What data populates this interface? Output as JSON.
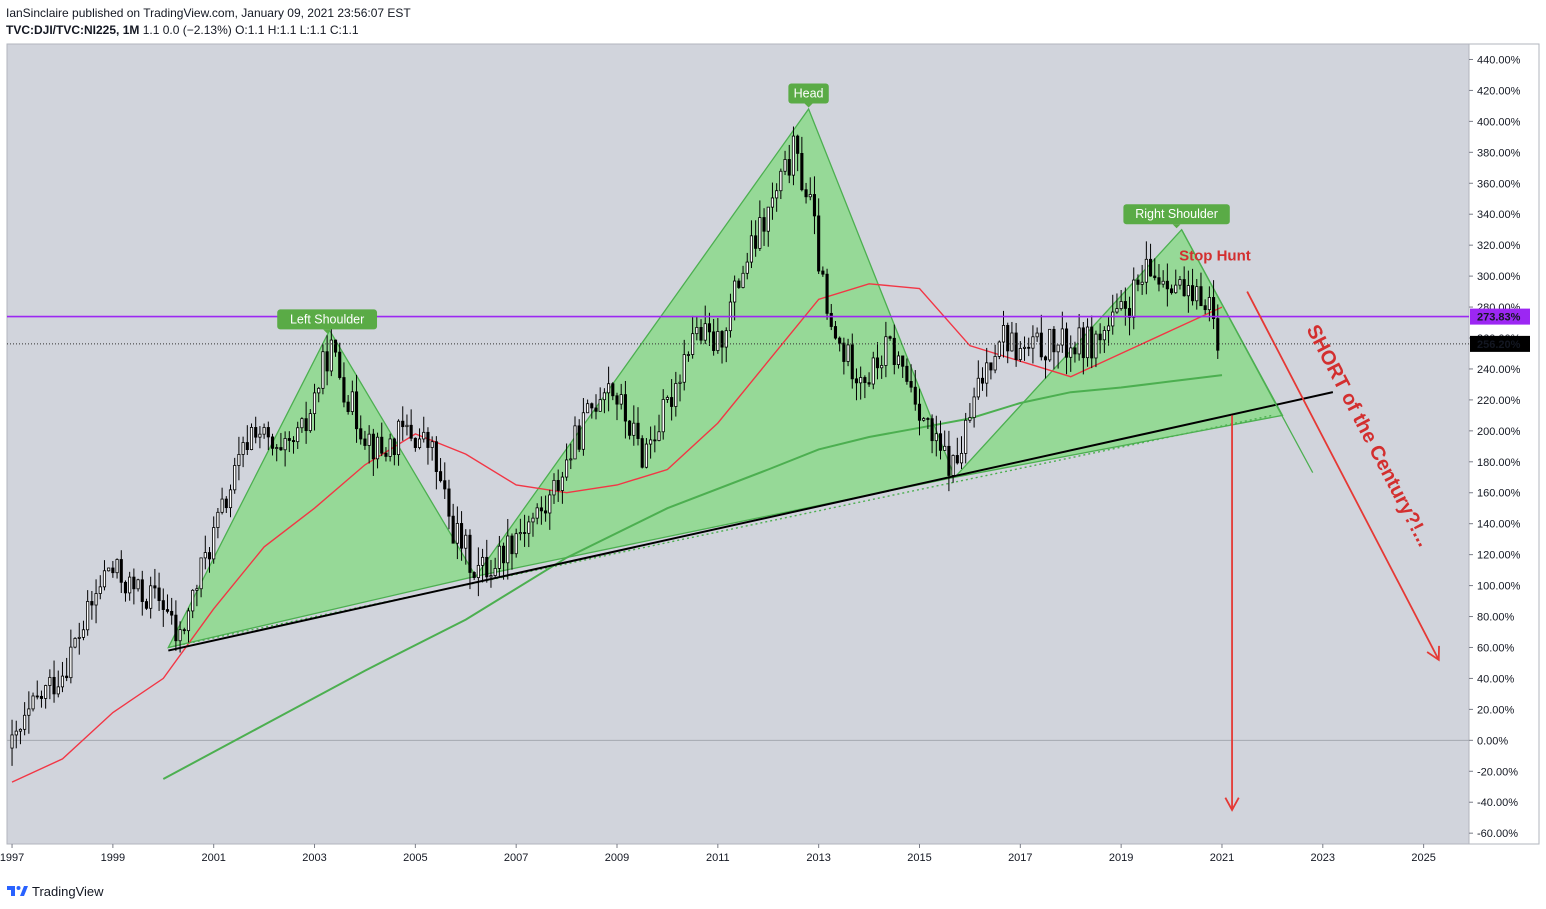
{
  "header": {
    "author": "IanSinclaire",
    "published_text": "published on TradingView.com, January 09, 2021 23:56:07 EST",
    "symbol": "TVC:DJI/TVC:NI225, 1M",
    "quote": "1.1  0.0 (−2.13%)  O:1.1  H:1.1  L:1.1  C:1.1"
  },
  "footer": {
    "brand": "TradingView",
    "icon": "tradingview-logo-icon"
  },
  "colors": {
    "background": "#d1d4dc",
    "triangle_fill": "#8fd98f",
    "triangle_stroke": "#4caf50",
    "ma_red": "#f23645",
    "ma_green": "#4caf50",
    "horizontal_line": "#9c27f3",
    "trendline": "#000000",
    "label_green": "#5aab46",
    "annotation_red": "#e53935"
  },
  "chart_data": {
    "type": "candlestick",
    "ylabel_unit": "%",
    "x_ticks": [
      "1997",
      "1999",
      "2001",
      "2003",
      "2005",
      "2007",
      "2009",
      "2011",
      "2013",
      "2015",
      "2017",
      "2019",
      "2021",
      "2023",
      "2025"
    ],
    "y_ticks": [
      "440.00%",
      "420.00%",
      "400.00%",
      "380.00%",
      "360.00%",
      "340.00%",
      "320.00%",
      "300.00%",
      "280.00%",
      "260.00%",
      "240.00%",
      "220.00%",
      "200.00%",
      "180.00%",
      "160.00%",
      "140.00%",
      "120.00%",
      "100.00%",
      "80.00%",
      "60.00%",
      "40.00%",
      "20.00%",
      "0.00%",
      "-20.00%",
      "-40.00%",
      "-60.00%"
    ],
    "y_tick_values": [
      440,
      420,
      400,
      380,
      360,
      340,
      320,
      300,
      280,
      260,
      240,
      220,
      200,
      180,
      160,
      140,
      120,
      100,
      80,
      60,
      40,
      20,
      0,
      -20,
      -40,
      -60
    ],
    "x_tick_values": [
      1997,
      1999,
      2001,
      2003,
      2005,
      2007,
      2009,
      2011,
      2013,
      2015,
      2017,
      2019,
      2021,
      2023,
      2025
    ],
    "xlim": [
      1996.9,
      2025.9
    ],
    "ylim": [
      -67,
      450
    ],
    "price_labels": [
      {
        "text": "273.83%",
        "value": 273.83,
        "style": "purple"
      },
      {
        "text": "256.20%",
        "value": 256.2,
        "style": "dark"
      }
    ],
    "anchors": [
      {
        "x": 1997.0,
        "y": -5
      },
      {
        "x": 1997.5,
        "y": 25
      },
      {
        "x": 1998.0,
        "y": 45
      },
      {
        "x": 1998.5,
        "y": 80
      },
      {
        "x": 1998.9,
        "y": 112
      },
      {
        "x": 1999.5,
        "y": 95
      },
      {
        "x": 2000.0,
        "y": 90
      },
      {
        "x": 2000.3,
        "y": 62
      },
      {
        "x": 2000.8,
        "y": 115
      },
      {
        "x": 2001.3,
        "y": 160
      },
      {
        "x": 2001.8,
        "y": 205
      },
      {
        "x": 2002.3,
        "y": 180
      },
      {
        "x": 2002.8,
        "y": 200
      },
      {
        "x": 2003.3,
        "y": 255
      },
      {
        "x": 2003.8,
        "y": 210
      },
      {
        "x": 2004.3,
        "y": 185
      },
      {
        "x": 2004.8,
        "y": 200
      },
      {
        "x": 2005.3,
        "y": 190
      },
      {
        "x": 2005.7,
        "y": 140
      },
      {
        "x": 2006.2,
        "y": 110
      },
      {
        "x": 2006.5,
        "y": 112
      },
      {
        "x": 2007.0,
        "y": 135
      },
      {
        "x": 2007.6,
        "y": 150
      },
      {
        "x": 2008.2,
        "y": 195
      },
      {
        "x": 2008.8,
        "y": 235
      },
      {
        "x": 2009.5,
        "y": 185
      },
      {
        "x": 2010.0,
        "y": 215
      },
      {
        "x": 2010.5,
        "y": 265
      },
      {
        "x": 2011.0,
        "y": 255
      },
      {
        "x": 2011.5,
        "y": 305
      },
      {
        "x": 2012.0,
        "y": 340
      },
      {
        "x": 2012.5,
        "y": 380
      },
      {
        "x": 2012.85,
        "y": 345
      },
      {
        "x": 2013.2,
        "y": 265
      },
      {
        "x": 2013.6,
        "y": 245
      },
      {
        "x": 2014.0,
        "y": 235
      },
      {
        "x": 2014.4,
        "y": 255
      },
      {
        "x": 2014.9,
        "y": 225
      },
      {
        "x": 2015.3,
        "y": 190
      },
      {
        "x": 2015.7,
        "y": 175
      },
      {
        "x": 2016.2,
        "y": 230
      },
      {
        "x": 2016.6,
        "y": 265
      },
      {
        "x": 2017.0,
        "y": 250
      },
      {
        "x": 2017.5,
        "y": 255
      },
      {
        "x": 2018.0,
        "y": 255
      },
      {
        "x": 2018.5,
        "y": 258
      },
      {
        "x": 2019.0,
        "y": 275
      },
      {
        "x": 2019.5,
        "y": 300
      },
      {
        "x": 2020.0,
        "y": 300
      },
      {
        "x": 2020.4,
        "y": 280
      },
      {
        "x": 2020.7,
        "y": 290
      },
      {
        "x": 2020.95,
        "y": 256.2
      }
    ],
    "ma_red": [
      [
        1997.0,
        -27
      ],
      [
        1998.0,
        -12
      ],
      [
        1999.0,
        18
      ],
      [
        2000.0,
        40
      ],
      [
        2001.0,
        85
      ],
      [
        2002.0,
        125
      ],
      [
        2003.0,
        150
      ],
      [
        2004.0,
        178
      ],
      [
        2005.0,
        198
      ],
      [
        2006.0,
        185
      ],
      [
        2007.0,
        165
      ],
      [
        2008.0,
        160
      ],
      [
        2009.0,
        165
      ],
      [
        2010.0,
        175
      ],
      [
        2011.0,
        205
      ],
      [
        2012.0,
        245
      ],
      [
        2013.0,
        285
      ],
      [
        2014.0,
        295
      ],
      [
        2015.0,
        292
      ],
      [
        2016.0,
        255
      ],
      [
        2017.0,
        245
      ],
      [
        2018.0,
        235
      ],
      [
        2019.0,
        250
      ],
      [
        2020.0,
        265
      ],
      [
        2021.0,
        280
      ]
    ],
    "ma_green": [
      [
        2000.0,
        -25
      ],
      [
        2002.0,
        10
      ],
      [
        2004.0,
        45
      ],
      [
        2006.0,
        78
      ],
      [
        2008.0,
        118
      ],
      [
        2010.0,
        150
      ],
      [
        2012.0,
        175
      ],
      [
        2013.0,
        188
      ],
      [
        2014.0,
        196
      ],
      [
        2015.0,
        202
      ],
      [
        2016.0,
        208
      ],
      [
        2017.0,
        218
      ],
      [
        2018.0,
        225
      ],
      [
        2019.0,
        228
      ],
      [
        2020.0,
        232
      ],
      [
        2021.0,
        236
      ]
    ],
    "triangles": [
      [
        [
          2000.1,
          60
        ],
        [
          2003.3,
          265
        ],
        [
          2006.2,
          106
        ]
      ],
      [
        [
          2006.2,
          106
        ],
        [
          2012.8,
          408
        ],
        [
          2015.7,
          170
        ]
      ],
      [
        [
          2015.7,
          170
        ],
        [
          2020.2,
          330
        ],
        [
          2022.2,
          210
        ]
      ]
    ],
    "horizontal_line_value": 273.83,
    "current_price_line_value": 256.2,
    "trendline": [
      [
        2000.1,
        58
      ],
      [
        2023.2,
        225
      ]
    ],
    "dotted_trendline": [
      [
        2000.1,
        60
      ],
      [
        2022.0,
        210
      ]
    ],
    "projection_line": [
      [
        2020.2,
        330
      ],
      [
        2022.8,
        173
      ]
    ],
    "measured_move_arrow": [
      [
        2021.2,
        210
      ],
      [
        2021.2,
        -45
      ]
    ],
    "short_arrow": [
      [
        2021.5,
        290
      ],
      [
        2025.3,
        52
      ]
    ],
    "annotations": {
      "left_shoulder": {
        "text": "Left Shoulder",
        "x": 2003.25,
        "y": 272
      },
      "head": {
        "text": "Head",
        "x": 2012.8,
        "y": 418
      },
      "right_shoulder": {
        "text": "Right Shoulder",
        "x": 2020.1,
        "y": 340
      },
      "stop_hunt": {
        "text": "Stop Hunt",
        "x": 2020.15,
        "y": 310
      },
      "short_century": {
        "text": "SHORT of the Century?!...",
        "x": 2023.8,
        "y": 195
      }
    }
  }
}
